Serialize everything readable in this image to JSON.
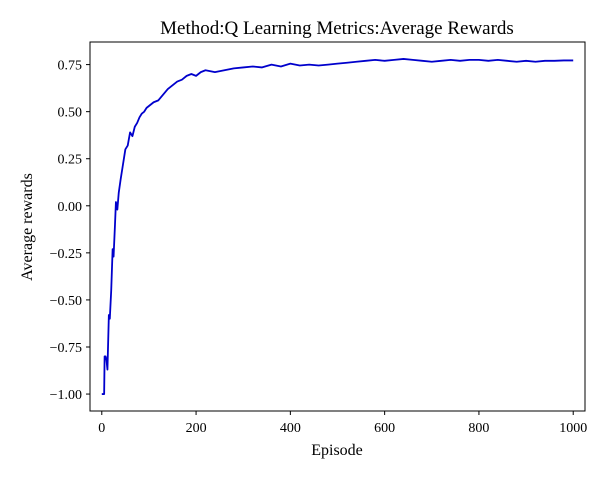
{
  "chart_data": {
    "type": "line",
    "title": "Method:Q Learning   Metrics:Average Rewards",
    "xlabel": "Episode",
    "ylabel": "Average rewards",
    "xlim": [
      -25,
      1025
    ],
    "ylim": [
      -1.09,
      0.87
    ],
    "xticks": [
      0,
      200,
      400,
      600,
      800,
      1000
    ],
    "yticks": [
      -1.0,
      -0.75,
      -0.5,
      -0.25,
      0.0,
      0.25,
      0.5,
      0.75
    ],
    "xtick_labels": [
      "0",
      "200",
      "400",
      "600",
      "800",
      "1000"
    ],
    "ytick_labels": [
      "−1.00",
      "−0.75",
      "−0.50",
      "−0.25",
      "0.00",
      "0.25",
      "0.50",
      "0.75"
    ],
    "grid": false,
    "series": [
      {
        "color": "#0000cc",
        "x": [
          0,
          5,
          6,
          8,
          10,
          12,
          15,
          17,
          20,
          23,
          25,
          28,
          30,
          33,
          36,
          40,
          45,
          50,
          55,
          60,
          65,
          70,
          75,
          80,
          85,
          90,
          95,
          100,
          110,
          120,
          130,
          140,
          150,
          160,
          170,
          180,
          190,
          200,
          210,
          220,
          240,
          260,
          280,
          300,
          320,
          340,
          360,
          380,
          400,
          420,
          440,
          460,
          480,
          500,
          520,
          540,
          560,
          580,
          600,
          620,
          640,
          660,
          680,
          700,
          720,
          740,
          760,
          780,
          800,
          820,
          840,
          860,
          880,
          900,
          920,
          940,
          960,
          980,
          1000
        ],
        "y": [
          -1.0,
          -1.0,
          -0.8,
          -0.8,
          -0.82,
          -0.87,
          -0.58,
          -0.6,
          -0.45,
          -0.23,
          -0.27,
          -0.1,
          0.02,
          -0.02,
          0.07,
          0.14,
          0.22,
          0.3,
          0.32,
          0.39,
          0.37,
          0.42,
          0.44,
          0.47,
          0.49,
          0.5,
          0.52,
          0.53,
          0.55,
          0.56,
          0.59,
          0.62,
          0.64,
          0.66,
          0.67,
          0.69,
          0.7,
          0.69,
          0.71,
          0.72,
          0.71,
          0.72,
          0.73,
          0.735,
          0.74,
          0.735,
          0.75,
          0.74,
          0.755,
          0.745,
          0.75,
          0.745,
          0.75,
          0.755,
          0.76,
          0.765,
          0.77,
          0.775,
          0.77,
          0.775,
          0.78,
          0.775,
          0.77,
          0.765,
          0.77,
          0.775,
          0.77,
          0.775,
          0.775,
          0.77,
          0.775,
          0.77,
          0.765,
          0.77,
          0.765,
          0.77,
          0.77,
          0.772,
          0.772
        ]
      }
    ]
  }
}
